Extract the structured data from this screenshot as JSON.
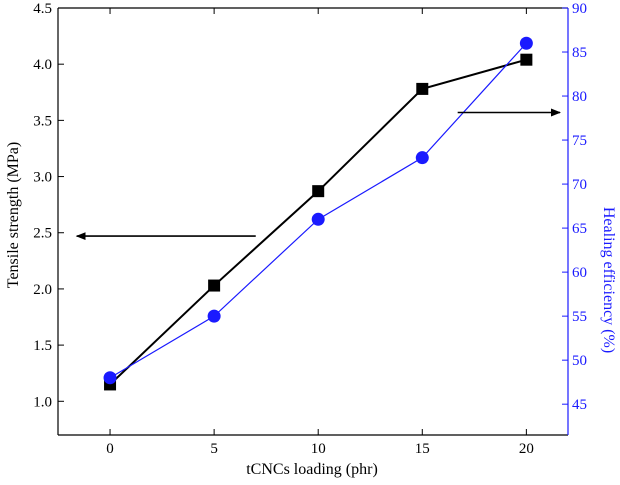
{
  "chart_data": {
    "type": "line",
    "title": "",
    "xlabel": "tCNCs loading (phr)",
    "ylabel_left": "Tensile strength (MPa)",
    "ylabel_right": "Healing efficiency (%)",
    "x_ticks": [
      0,
      5,
      10,
      15,
      20
    ],
    "y_left_ticks": [
      "1.0",
      "1.5",
      "2.0",
      "2.5",
      "3.0",
      "3.5",
      "4.0",
      "4.5"
    ],
    "y_right_ticks": [
      "45",
      "50",
      "55",
      "60",
      "65",
      "70",
      "75",
      "80",
      "85",
      "90"
    ],
    "xlim": [
      -2.5,
      22
    ],
    "ylim_left": [
      0.7,
      4.5
    ],
    "ylim_right": [
      41.5,
      90
    ],
    "series": [
      {
        "name": "Tensile strength",
        "axis": "left",
        "marker": "square",
        "color": "#000000",
        "x": [
          0,
          5,
          10,
          15,
          20
        ],
        "values": [
          1.15,
          2.03,
          2.87,
          3.78,
          4.04
        ]
      },
      {
        "name": "Healing efficiency",
        "axis": "right",
        "marker": "circle",
        "color": "#1a1aff",
        "x": [
          0,
          5,
          10,
          15,
          20
        ],
        "values": [
          48,
          55,
          66,
          73,
          86
        ]
      }
    ],
    "annotations": [
      {
        "type": "arrow",
        "direction": "left",
        "meaning": "Tensile strength uses left axis"
      },
      {
        "type": "arrow",
        "direction": "right",
        "meaning": "Healing efficiency uses right axis"
      }
    ],
    "right_axis_color": "#1a1aff",
    "grid": false
  }
}
